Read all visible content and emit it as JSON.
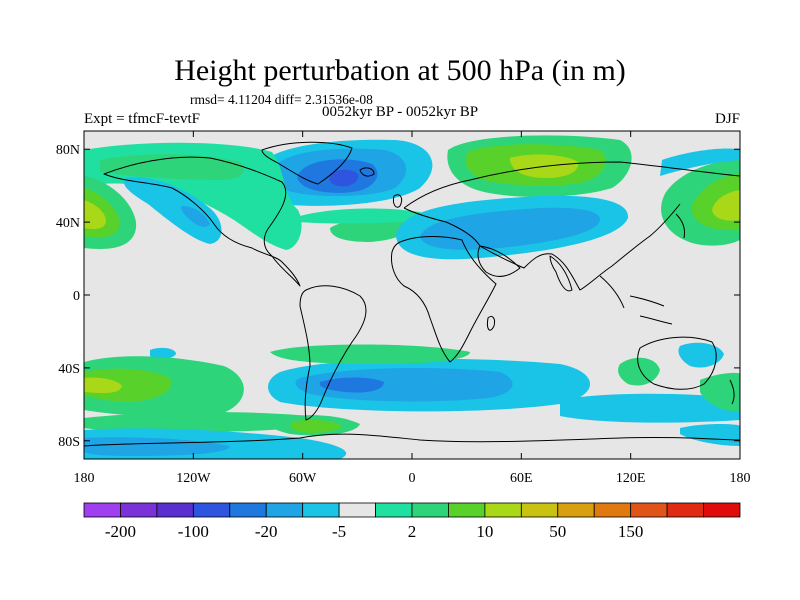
{
  "title": "Height perturbation at 500 hPa (in m)",
  "stats": "rmsd= 4.11204 diff= 2.31536e-08",
  "left_label": "Expt = tfmcF-tevtF",
  "center_label": "0052kyr BP - 0052kyr BP",
  "right_label": "DJF",
  "map": {
    "projection": "cylindrical-equidistant",
    "lon_range": [
      -180,
      180
    ],
    "lat_range": [
      -90,
      90
    ],
    "background_color": "#e6e6e6",
    "lat_ticks": [
      {
        "value": 80,
        "label": "80N"
      },
      {
        "value": 40,
        "label": "40N"
      },
      {
        "value": 0,
        "label": "0"
      },
      {
        "value": -40,
        "label": "40S"
      },
      {
        "value": -80,
        "label": "80S"
      }
    ],
    "lon_ticks": [
      {
        "value": -180,
        "label": "180"
      },
      {
        "value": -120,
        "label": "120W"
      },
      {
        "value": -60,
        "label": "60W"
      },
      {
        "value": 0,
        "label": "0"
      },
      {
        "value": 60,
        "label": "60E"
      },
      {
        "value": 120,
        "label": "120E"
      },
      {
        "value": 180,
        "label": "180"
      }
    ]
  },
  "colorbar": {
    "colors": [
      "#9f3fef",
      "#7a33d6",
      "#5a2fd0",
      "#2f54e0",
      "#1e78e0",
      "#1fa4e6",
      "#19c4e6",
      "#e6e6e6",
      "#1fe0a0",
      "#2ed47a",
      "#58d22a",
      "#a8d818",
      "#c8c210",
      "#d8a010",
      "#e07a10",
      "#e05418",
      "#e02a14",
      "#e00c0c"
    ],
    "labels": [
      {
        "after_box": 1,
        "text": "-200"
      },
      {
        "after_box": 3,
        "text": "-100"
      },
      {
        "after_box": 5,
        "text": "-20"
      },
      {
        "after_box": 7,
        "text": "-5"
      },
      {
        "after_box": 9,
        "text": "2"
      },
      {
        "after_box": 11,
        "text": "10"
      },
      {
        "after_box": 13,
        "text": "50"
      },
      {
        "after_box": 15,
        "text": "150"
      }
    ]
  }
}
